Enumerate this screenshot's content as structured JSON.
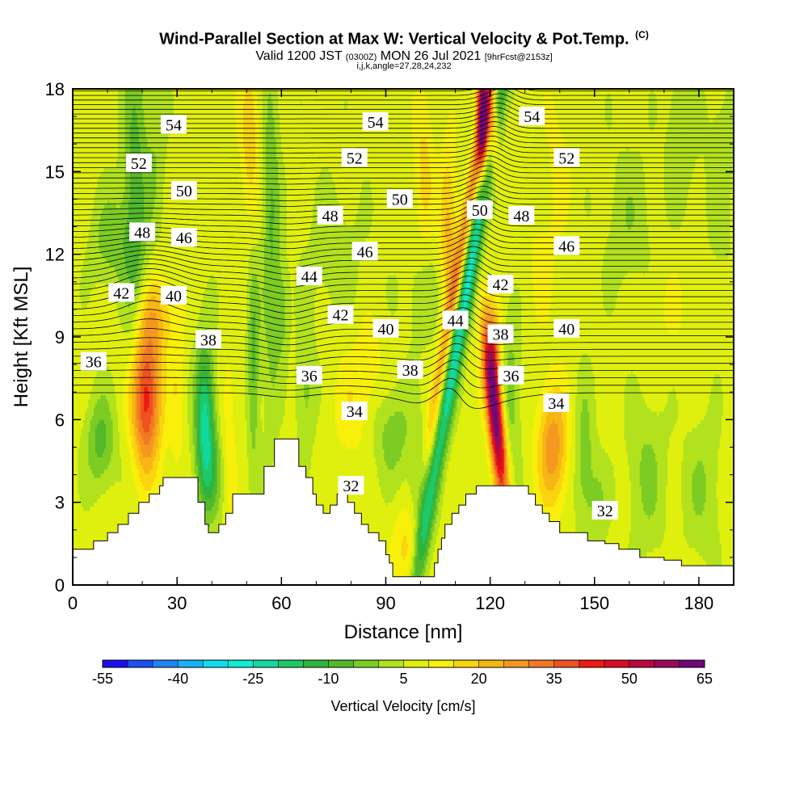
{
  "title": {
    "main": "Wind-Parallel Section at Max W: Vertical Velocity & Pot.Temp.",
    "copyright": "(C)",
    "valid_prefix": "Valid 1200 JST",
    "valid_utc": "(0300Z)",
    "valid_date": "MON 26 Jul 2021",
    "forecast": "[9hrFcst@2153z]",
    "indices": "i,j,k,angle=27,28,24,232"
  },
  "chart_data": {
    "type": "heatmap",
    "xlabel": "Distance [nm]",
    "ylabel": "Height [Kft MSL]",
    "xlim": [
      0,
      190
    ],
    "ylim": [
      0,
      18
    ],
    "xticks": [
      "0",
      "30",
      "60",
      "90",
      "120",
      "150",
      "180"
    ],
    "yticks": [
      "0",
      "3",
      "6",
      "9",
      "12",
      "15",
      "18"
    ],
    "colorbar": {
      "title": "Vertical Velocity [cm/s]",
      "levels": [
        -55,
        -50,
        -45,
        -40,
        -35,
        -30,
        -25,
        -20,
        -15,
        -10,
        -5,
        0,
        5,
        10,
        15,
        20,
        25,
        30,
        35,
        40,
        45,
        50,
        55,
        60,
        65
      ],
      "tick_labels": [
        "-55",
        "-40",
        "-25",
        "-10",
        "5",
        "20",
        "35",
        "50",
        "65"
      ],
      "colors": [
        "#1a10ee",
        "#1a52f0",
        "#1d86f5",
        "#17b2f5",
        "#10ddf2",
        "#10ecd0",
        "#13d8a0",
        "#1ec868",
        "#2db43c",
        "#52b82c",
        "#7ccc24",
        "#b2e21e",
        "#e0f00e",
        "#f8f00a",
        "#fad40e",
        "#f8b616",
        "#f59820",
        "#f07a22",
        "#ee5220",
        "#ee1a14",
        "#d80e22",
        "#b80a3e",
        "#980c5c",
        "#70087a"
      ]
    },
    "terrain_profile_kft": [
      [
        0,
        1.3
      ],
      [
        6,
        1.6
      ],
      [
        10,
        1.9
      ],
      [
        13,
        2.2
      ],
      [
        16,
        2.6
      ],
      [
        19,
        3.0
      ],
      [
        22,
        3.3
      ],
      [
        25,
        3.6
      ],
      [
        26,
        3.9
      ],
      [
        35,
        3.9
      ],
      [
        36,
        3.0
      ],
      [
        38,
        2.2
      ],
      [
        39,
        1.9
      ],
      [
        42,
        2.2
      ],
      [
        44,
        2.6
      ],
      [
        46,
        3.3
      ],
      [
        54,
        3.3
      ],
      [
        55,
        4.3
      ],
      [
        58,
        5.3
      ],
      [
        64,
        5.3
      ],
      [
        65,
        4.3
      ],
      [
        67,
        3.9
      ],
      [
        69,
        3.3
      ],
      [
        70,
        2.9
      ],
      [
        72,
        2.6
      ],
      [
        74,
        2.9
      ],
      [
        76,
        3.3
      ],
      [
        79,
        3.0
      ],
      [
        81,
        2.6
      ],
      [
        83,
        2.2
      ],
      [
        85,
        1.9
      ],
      [
        88,
        1.6
      ],
      [
        90,
        1.1
      ],
      [
        91,
        0.8
      ],
      [
        92,
        0.3
      ],
      [
        103,
        0.3
      ],
      [
        104,
        0.8
      ],
      [
        105,
        1.3
      ],
      [
        106,
        1.7
      ],
      [
        107,
        2.2
      ],
      [
        109,
        2.6
      ],
      [
        111,
        2.9
      ],
      [
        113,
        3.3
      ],
      [
        116,
        3.6
      ],
      [
        128,
        3.6
      ],
      [
        131,
        3.3
      ],
      [
        133,
        2.9
      ],
      [
        135,
        2.6
      ],
      [
        137,
        2.3
      ],
      [
        140,
        1.9
      ],
      [
        145,
        1.9
      ],
      [
        148,
        1.6
      ],
      [
        153,
        1.5
      ],
      [
        157,
        1.3
      ],
      [
        163,
        1.0
      ],
      [
        170,
        0.9
      ],
      [
        175,
        0.7
      ],
      [
        190,
        0.7
      ]
    ],
    "theta_contour_labels": [
      {
        "value": "54",
        "x": 29,
        "y": 16.7
      },
      {
        "value": "54",
        "x": 87,
        "y": 16.8
      },
      {
        "value": "54",
        "x": 132,
        "y": 17.0
      },
      {
        "value": "52",
        "x": 19,
        "y": 15.3
      },
      {
        "value": "52",
        "x": 81,
        "y": 15.5
      },
      {
        "value": "52",
        "x": 142,
        "y": 15.5
      },
      {
        "value": "50",
        "x": 32,
        "y": 14.3
      },
      {
        "value": "50",
        "x": 94,
        "y": 14.0
      },
      {
        "value": "50",
        "x": 117,
        "y": 13.6
      },
      {
        "value": "48",
        "x": 20,
        "y": 12.8
      },
      {
        "value": "48",
        "x": 74,
        "y": 13.4
      },
      {
        "value": "48",
        "x": 129,
        "y": 13.4
      },
      {
        "value": "46",
        "x": 32,
        "y": 12.6
      },
      {
        "value": "46",
        "x": 84,
        "y": 12.1
      },
      {
        "value": "46",
        "x": 142,
        "y": 12.3
      },
      {
        "value": "44",
        "x": 68,
        "y": 11.2
      },
      {
        "value": "44",
        "x": 110,
        "y": 9.6
      },
      {
        "value": "42",
        "x": 14,
        "y": 10.6
      },
      {
        "value": "42",
        "x": 77,
        "y": 9.8
      },
      {
        "value": "42",
        "x": 123,
        "y": 10.9
      },
      {
        "value": "40",
        "x": 29,
        "y": 10.5
      },
      {
        "value": "40",
        "x": 90,
        "y": 9.3
      },
      {
        "value": "40",
        "x": 142,
        "y": 9.3
      },
      {
        "value": "38",
        "x": 39,
        "y": 8.9
      },
      {
        "value": "38",
        "x": 97,
        "y": 7.8
      },
      {
        "value": "38",
        "x": 123,
        "y": 9.1
      },
      {
        "value": "36",
        "x": 6,
        "y": 8.1
      },
      {
        "value": "36",
        "x": 68,
        "y": 7.6
      },
      {
        "value": "36",
        "x": 126,
        "y": 7.6
      },
      {
        "value": "34",
        "x": 81,
        "y": 6.3
      },
      {
        "value": "34",
        "x": 139,
        "y": 6.6
      },
      {
        "value": "32",
        "x": 80,
        "y": 3.6
      },
      {
        "value": "32",
        "x": 153,
        "y": 2.7
      }
    ]
  }
}
